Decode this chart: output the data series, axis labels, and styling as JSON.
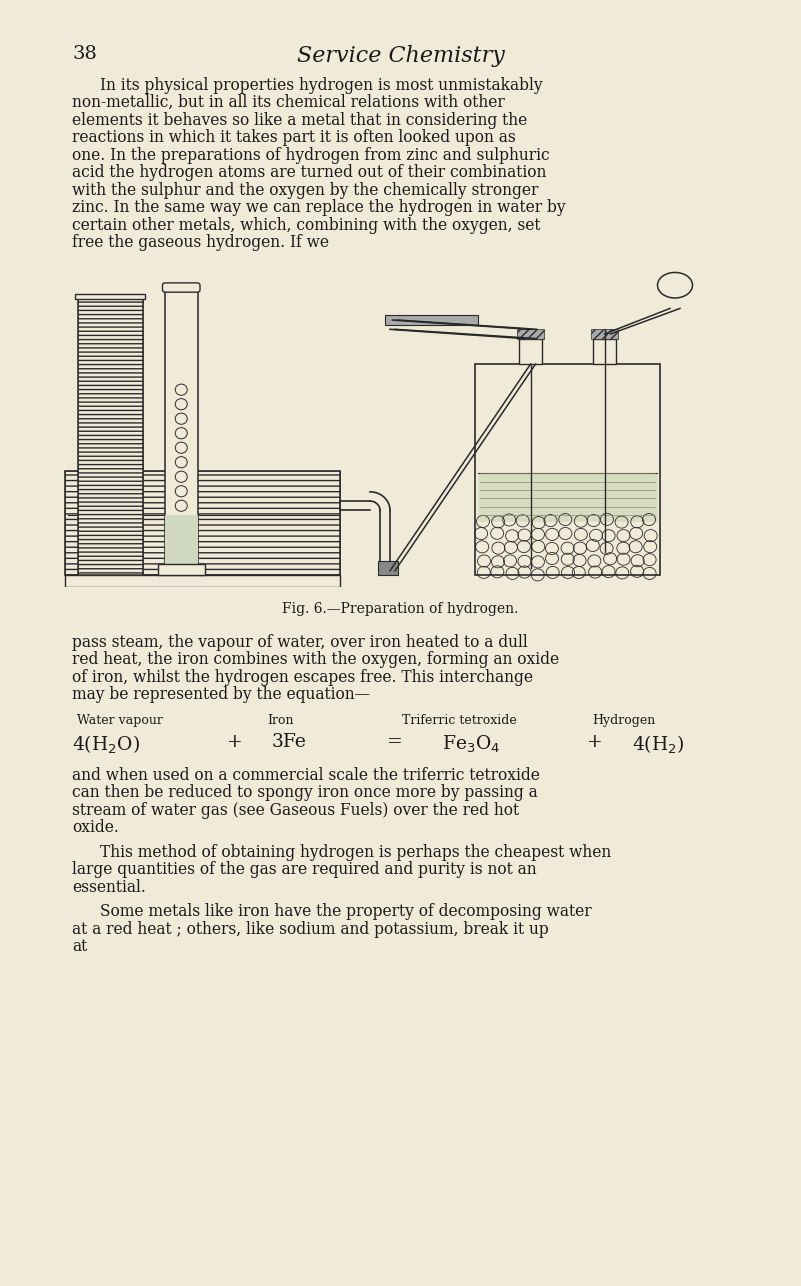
{
  "background_color": "#f0ead8",
  "page_number": "38",
  "title": "Service Chemistry",
  "body_color": "#1a1a1a",
  "para1": "In its physical properties hydrogen is most unmistakably non-metallic, but in all its chemical relations with other elements it behaves so like a metal that in considering the reactions in which it takes part it is often looked upon as one.  In the preparations of hydrogen from zinc and sulphuric acid the hydrogen atoms are turned out of their combination with the sulphur and the oxygen by the chemically stronger zinc.  In the same way we can replace the hydrogen in water by certain other metals, which, combining with the oxygen, set free the gaseous hydrogen.  If we",
  "fig_caption": "Fig. 6.—Preparation of hydrogen.",
  "para2": "pass steam, the vapour of water, over iron heated to a dull red heat, the iron combines with the oxygen, forming an oxide of iron, whilst the hydrogen escapes free.  This interchange may be represented by the equation—",
  "eq_labels": [
    "Water vapour",
    "Iron",
    "Triferric tetroxide",
    "Hydrogen"
  ],
  "para3": "and when used on a commercial scale the triferric tetroxide can then be reduced to spongy iron once more by passing a stream of water gas (see Gaseous Fuels) over the red hot oxide.",
  "para4": "This method of obtaining hydrogen is perhaps the cheapest when large quantities of the gas are required and purity is not an essential.",
  "para5": "Some metals like iron have the property of decomposing water at a red heat ; others, like sodium and potassium, break it up at"
}
